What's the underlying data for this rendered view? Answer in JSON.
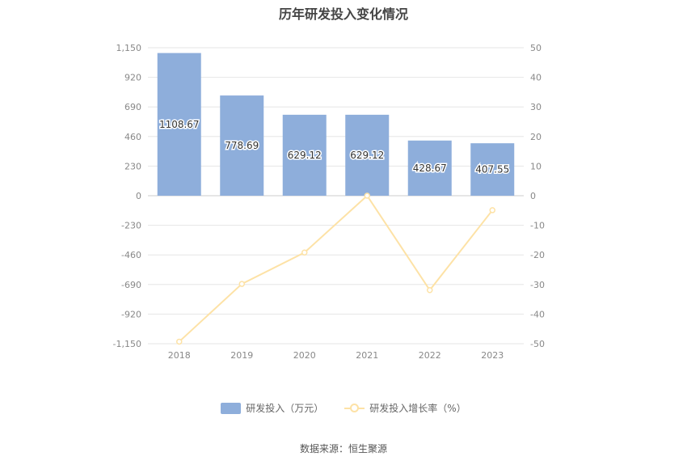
{
  "chart_data": {
    "type": "bar",
    "title": "历年研发投入变化情况",
    "categories": [
      "2018",
      "2019",
      "2020",
      "2021",
      "2022",
      "2023"
    ],
    "series": [
      {
        "name": "研发投入（万元）",
        "type": "bar",
        "axis": "left",
        "values": [
          1108.67,
          778.69,
          629.12,
          629.12,
          428.67,
          407.55
        ],
        "data_labels": [
          "1108.67",
          "778.69",
          "629.12",
          "629.12",
          "428.67",
          "407.55"
        ],
        "color": "#8eaedb"
      },
      {
        "name": "研发投入增长率（%）",
        "type": "line",
        "axis": "right",
        "values": [
          -49.3,
          -29.8,
          -19.2,
          0.0,
          -31.9,
          -4.9
        ],
        "color": "#fde2a6"
      }
    ],
    "left_axis": {
      "ylim": [
        -1150,
        1150
      ],
      "ticks": [
        1150,
        920,
        690,
        460,
        230,
        0,
        -230,
        -460,
        -690,
        -920,
        -1150
      ],
      "tick_labels": [
        "1,150",
        "920",
        "690",
        "460",
        "230",
        "0",
        "-230",
        "-460",
        "-690",
        "-920",
        "-1,150"
      ]
    },
    "right_axis": {
      "ylim": [
        -50,
        50
      ],
      "ticks": [
        50,
        40,
        30,
        20,
        10,
        0,
        -10,
        -20,
        -30,
        -40,
        -50
      ],
      "tick_labels": [
        "50",
        "40",
        "30",
        "20",
        "10",
        "0",
        "-10",
        "-20",
        "-30",
        "-40",
        "-50"
      ]
    },
    "grid": true,
    "legend": "bottom-center",
    "source": "数据来源：恒生聚源"
  }
}
